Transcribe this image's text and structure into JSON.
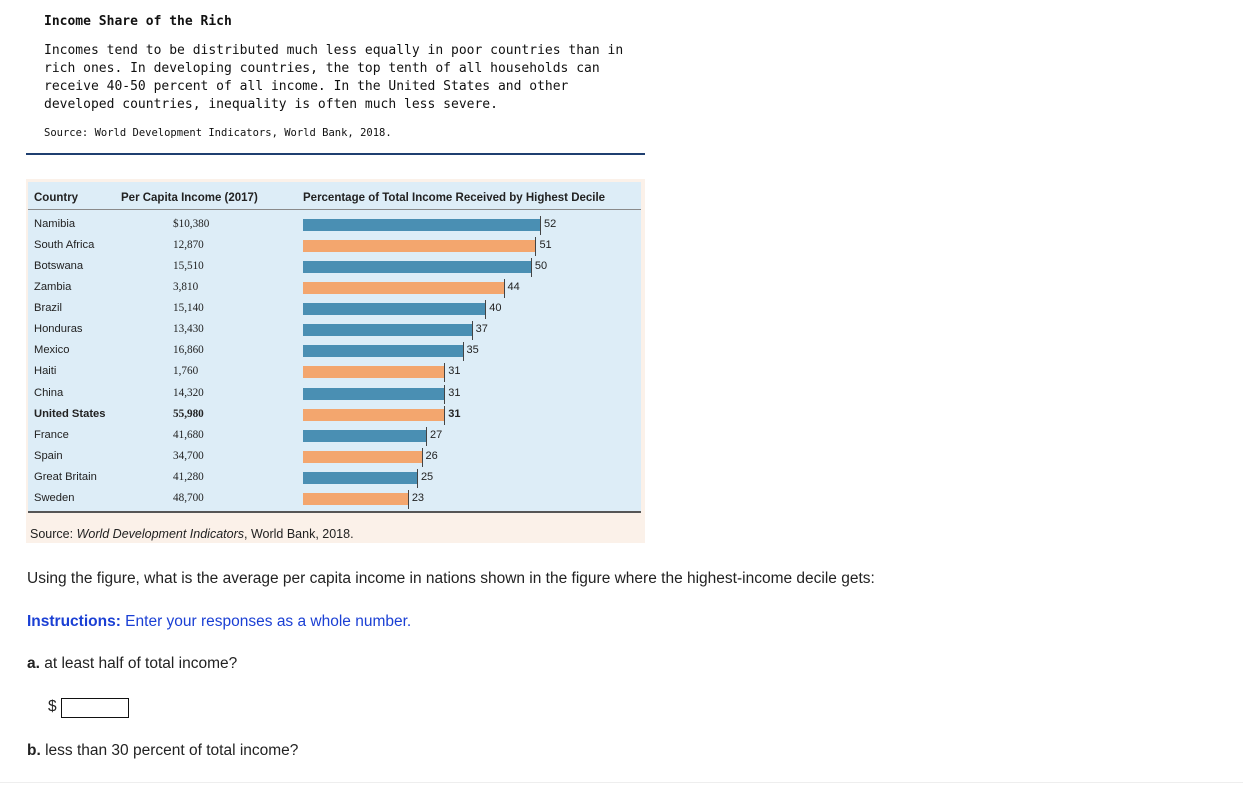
{
  "header": {
    "title": "Income Share of the Rich",
    "description": "Incomes tend to be distributed much less equally in poor countries than in rich ones. In developing countries, the top tenth of all households can receive 40-50 percent of all income. In the United States and other developed countries, inequality is often much less severe.",
    "source": "Source: World Development Indicators, World Bank, 2018."
  },
  "figure": {
    "col_country": "Country",
    "col_income": "Per Capita Income (2017)",
    "col_pct": "Percentage of Total Income Received by Highest Decile",
    "source_prefix": "Source: ",
    "source_italic": "World Development Indicators",
    "source_suffix": ", World Bank, 2018."
  },
  "chart_data": {
    "type": "bar",
    "categories": [
      "Namibia",
      "South Africa",
      "Botswana",
      "Zambia",
      "Brazil",
      "Honduras",
      "Mexico",
      "Haiti",
      "China",
      "United States",
      "France",
      "Spain",
      "Great Britain",
      "Sweden"
    ],
    "incomes": [
      "$10,380",
      "12,870",
      "15,510",
      "3,810",
      "15,140",
      "13,430",
      "16,860",
      "1,760",
      "14,320",
      "55,980",
      "41,680",
      "34,700",
      "41,280",
      "48,700"
    ],
    "values": [
      52,
      51,
      50,
      44,
      40,
      37,
      35,
      31,
      31,
      31,
      27,
      26,
      25,
      23
    ],
    "colors": [
      "#4a8fb3",
      "#f3a66e",
      "#4a8fb3",
      "#f3a66e",
      "#4a8fb3",
      "#4a8fb3",
      "#4a8fb3",
      "#f3a66e",
      "#4a8fb3",
      "#f3a66e",
      "#4a8fb3",
      "#f3a66e",
      "#4a8fb3",
      "#f3a66e"
    ],
    "highlight": "United States",
    "xlim": [
      0,
      52
    ]
  },
  "questions": {
    "main": "Using the figure, what is the average per capita income in nations shown in the figure where the highest-income decile gets:",
    "instructions_label": "Instructions:",
    "instructions_text": " Enter your responses as a whole number.",
    "a_label": "a.",
    "a_text": " at least half of total income?",
    "currency": "$",
    "answer_a_value": "",
    "b_label": "b.",
    "b_text": " less than 30 percent of total income?"
  }
}
